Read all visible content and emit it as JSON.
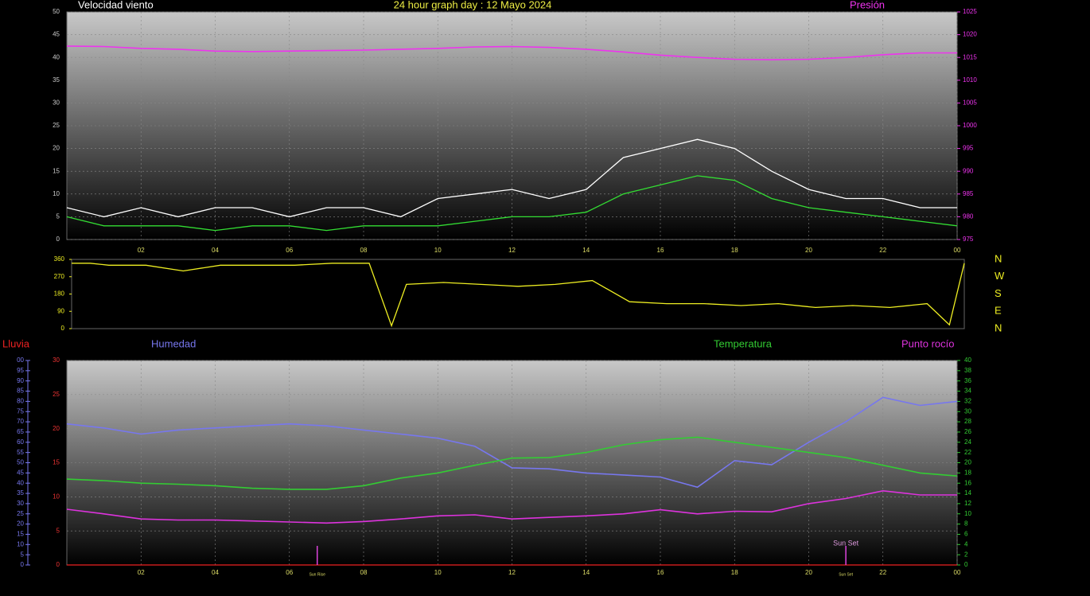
{
  "chart_data": [
    {
      "type": "line",
      "title": "24 hour graph day : 12 Mayo 2024",
      "ylabel": "Velocidad viento",
      "x": [
        0,
        1,
        2,
        3,
        4,
        5,
        6,
        7,
        8,
        9,
        10,
        11,
        12,
        13,
        14,
        15,
        16,
        17,
        18,
        19,
        20,
        21,
        22,
        23,
        24
      ],
      "xlim": [
        0,
        24
      ],
      "xticks": [
        {
          "value": 2,
          "label": "02"
        },
        {
          "value": 4,
          "label": "04"
        },
        {
          "value": 6,
          "label": "06"
        },
        {
          "value": 8,
          "label": "08"
        },
        10,
        12,
        14,
        16,
        18,
        20,
        22,
        {
          "value": 24,
          "label": "00"
        }
      ],
      "ylim": [
        0,
        50
      ],
      "yticks": [
        0,
        5,
        10,
        15,
        20,
        25,
        30,
        35,
        40,
        45,
        50
      ],
      "y2lim": [
        975,
        1025
      ],
      "y2ticks": [
        975,
        980,
        985,
        990,
        995,
        1000,
        1005,
        1010,
        1015,
        1020,
        1025
      ],
      "grid": true,
      "series": [
        {
          "color": "#ffffff",
          "values": [
            7,
            5,
            7,
            5,
            7,
            7,
            5,
            7,
            7,
            5,
            9,
            10,
            11,
            9,
            11,
            18,
            20,
            22,
            20,
            15,
            11,
            9,
            9,
            7,
            7
          ]
        },
        {
          "color": "#33dd33",
          "values": [
            5,
            3,
            3,
            3,
            2,
            3,
            3,
            2,
            3,
            3,
            3,
            4,
            5,
            5,
            6,
            10,
            12,
            14,
            13,
            9,
            7,
            6,
            5,
            4,
            3
          ]
        },
        {
          "name": "Presión",
          "color": "#ee33ee",
          "axis": "y2",
          "values": [
            1017.5,
            1017.4,
            1017,
            1016.8,
            1016.4,
            1016.3,
            1016.4,
            1016.5,
            1016.6,
            1016.8,
            1017,
            1017.3,
            1017.4,
            1017.2,
            1016.8,
            1016.2,
            1015.5,
            1015,
            1014.6,
            1014.5,
            1014.6,
            1015,
            1015.6,
            1016,
            1016
          ]
        }
      ]
    },
    {
      "type": "line",
      "x": [
        0,
        0.5,
        1,
        2,
        3,
        4,
        5,
        6,
        7,
        8,
        8.6,
        9,
        10,
        11,
        12,
        13,
        14,
        15,
        16,
        17,
        18,
        19,
        20,
        21,
        22,
        23,
        23.6,
        24
      ],
      "xlim": [
        0,
        24
      ],
      "ylim": [
        0,
        360
      ],
      "yticks": [
        0,
        90,
        180,
        270,
        360
      ],
      "y2lim": [
        0,
        360
      ],
      "y2ticks": [
        {
          "value": 360,
          "label": "N"
        },
        {
          "value": 270,
          "label": "W"
        },
        {
          "value": 180,
          "label": "S"
        },
        {
          "value": 90,
          "label": "E"
        },
        {
          "value": 0,
          "label": "N"
        }
      ],
      "series": [
        {
          "color": "#eeee22",
          "values": [
            340,
            340,
            330,
            330,
            300,
            330,
            330,
            330,
            340,
            340,
            15,
            230,
            240,
            230,
            220,
            230,
            250,
            140,
            130,
            130,
            120,
            130,
            110,
            120,
            110,
            130,
            20,
            340
          ]
        }
      ]
    },
    {
      "type": "line",
      "x": [
        0,
        1,
        2,
        3,
        4,
        5,
        6,
        7,
        8,
        9,
        10,
        11,
        12,
        13,
        14,
        15,
        16,
        17,
        18,
        19,
        20,
        21,
        22,
        23,
        24
      ],
      "xlim": [
        0,
        24
      ],
      "xticks": [
        {
          "value": 2,
          "label": "02"
        },
        {
          "value": 4,
          "label": "04"
        },
        {
          "value": 6,
          "label": "06"
        },
        {
          "value": 8,
          "label": "08"
        },
        10,
        12,
        14,
        16,
        18,
        20,
        22,
        {
          "value": 24,
          "label": "00"
        }
      ],
      "ylim": [
        0,
        30
      ],
      "yticks": [
        0,
        5,
        10,
        15,
        20,
        25,
        30
      ],
      "y2lim": [
        0,
        40
      ],
      "y2ticks": [
        0,
        2,
        4,
        6,
        8,
        10,
        12,
        14,
        16,
        18,
        20,
        22,
        24,
        26,
        28,
        30,
        32,
        34,
        36,
        38,
        40
      ],
      "y3lim": [
        0,
        100
      ],
      "y3ticks": [
        0,
        5,
        10,
        15,
        20,
        25,
        30,
        35,
        40,
        45,
        50,
        55,
        60,
        65,
        70,
        75,
        80,
        85,
        90,
        95,
        {
          "value": 100,
          "label": "00"
        }
      ],
      "grid": true,
      "series": [
        {
          "name": "Lluvia",
          "color": "#ee2222",
          "values": [
            0,
            0,
            0,
            0,
            0,
            0,
            0,
            0,
            0,
            0,
            0,
            0,
            0,
            0,
            0,
            0,
            0,
            0,
            0,
            0,
            0,
            0,
            0,
            0,
            0
          ]
        },
        {
          "name": "Humedad",
          "color": "#7777ee",
          "axis": "y3",
          "values": [
            69,
            67,
            64,
            66,
            67,
            68,
            69,
            68,
            66,
            64,
            62,
            58,
            47.5,
            47,
            45,
            44,
            43,
            38,
            51,
            49,
            60,
            70,
            82,
            78,
            80
          ]
        },
        {
          "name": "Temperatura",
          "color": "#33cc33",
          "axis": "y2",
          "values": [
            16.8,
            16.5,
            16,
            15.8,
            15.5,
            15,
            14.8,
            14.8,
            15.5,
            17,
            18,
            19.5,
            20.9,
            21,
            22,
            23.5,
            24.5,
            25,
            24,
            23,
            22,
            21,
            19.5,
            18,
            17.4
          ]
        },
        {
          "name": "Punto rocío",
          "color": "#dd33dd",
          "axis": "y2",
          "values": [
            10.9,
            10,
            9,
            8.8,
            8.8,
            8.6,
            8.4,
            8.2,
            8.5,
            9,
            9.6,
            9.8,
            9,
            9.3,
            9.6,
            10,
            10.8,
            10,
            10.5,
            10.4,
            12,
            13,
            14.5,
            13.7,
            13.7
          ]
        }
      ],
      "sun_markers": [
        {
          "text": "Sun Rise",
          "x": 6.75
        },
        {
          "text": "Sun Set",
          "x": 21
        }
      ],
      "annotations": [
        {
          "text": "Sun Set",
          "x": 21
        }
      ]
    }
  ]
}
